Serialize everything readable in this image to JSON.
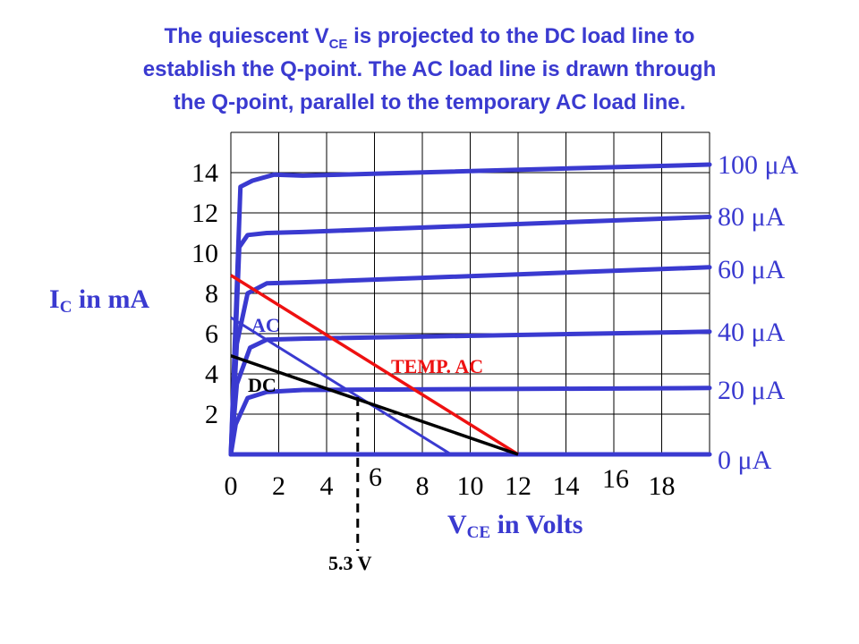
{
  "title": {
    "line1_prefix": "The quiescent V",
    "line1_sub": "CE",
    "line1_suffix": " is projected to the DC load line to",
    "line2": "establish the Q-point.  The AC load line is drawn through",
    "line3": "the Q-point, parallel to the temporary AC load line."
  },
  "colors": {
    "title": "#3a3ad0",
    "curves": "#3a3ad0",
    "grid": "#000000",
    "temp_ac_line": "#ee1111",
    "ac_line": "#3a3ad0",
    "dc_line": "#000000"
  },
  "chart_data": {
    "type": "line",
    "xlabel": {
      "main": "V",
      "sub": "CE",
      "rest": " in Volts"
    },
    "ylabel": {
      "main": "I",
      "sub": "C",
      "rest": " in mA"
    },
    "xlim": [
      0,
      20
    ],
    "ylim": [
      0,
      16
    ],
    "x_ticks": [
      "0",
      "2",
      "4",
      "6",
      "8",
      "10",
      "12",
      "14",
      "16",
      "18"
    ],
    "y_ticks": [
      "2",
      "4",
      "6",
      "8",
      "10",
      "12",
      "14"
    ],
    "grid": true,
    "series": [
      {
        "name": "0 μA",
        "x": [
          0,
          20
        ],
        "y": [
          0,
          0
        ]
      },
      {
        "name": "20 μA",
        "x": [
          0,
          0.2,
          0.7,
          1.5,
          3,
          20
        ],
        "y": [
          0,
          1.5,
          2.8,
          3.1,
          3.2,
          3.3
        ]
      },
      {
        "name": "40 μA",
        "x": [
          0,
          0.25,
          0.8,
          1.5,
          3,
          20
        ],
        "y": [
          0,
          3.5,
          5.3,
          5.7,
          5.75,
          6.1
        ]
      },
      {
        "name": "60 μA",
        "x": [
          0,
          0.25,
          0.7,
          1.5,
          3,
          20
        ],
        "y": [
          0,
          5.5,
          8.0,
          8.5,
          8.55,
          9.3
        ]
      },
      {
        "name": "80 μA",
        "x": [
          0,
          0.35,
          0.7,
          1.5,
          3,
          20
        ],
        "y": [
          0,
          10.3,
          10.9,
          11.0,
          11.05,
          11.8
        ]
      },
      {
        "name": "100 μA",
        "x": [
          0,
          0.4,
          0.9,
          1.8,
          3,
          20
        ],
        "y": [
          0,
          13.3,
          13.6,
          13.9,
          13.85,
          14.4
        ]
      },
      {
        "name": "TEMP. AC",
        "x": [
          0,
          12
        ],
        "y": [
          8.9,
          0
        ]
      },
      {
        "name": "AC",
        "x": [
          0,
          9.2
        ],
        "y": [
          6.8,
          0
        ]
      },
      {
        "name": "DC",
        "x": [
          0,
          12
        ],
        "y": [
          4.9,
          0
        ]
      },
      {
        "name": "5.3 V",
        "x": [
          5.3,
          5.3
        ],
        "y": [
          2.85,
          -4.8
        ]
      }
    ]
  }
}
